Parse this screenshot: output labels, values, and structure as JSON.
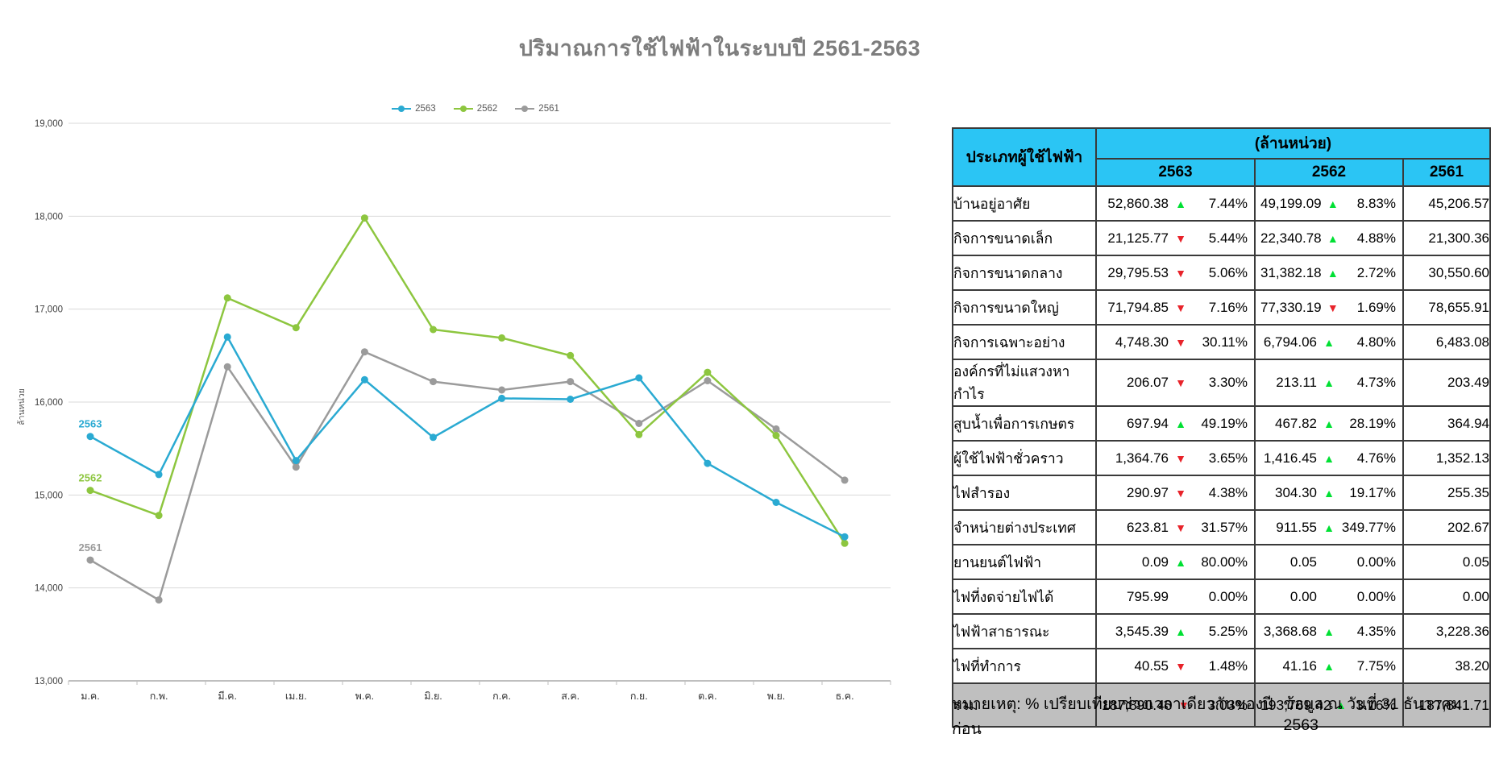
{
  "title": "ปริมาณการใช้ไฟฟ้าในระบบปี 2561-2563",
  "icons": {
    "up": "▲",
    "down": "▼"
  },
  "chart_data": {
    "type": "line",
    "title": "ปริมาณการใช้ไฟฟ้าในระบบปี 2561-2563",
    "ylabel": "ล้านหน่วย",
    "ylim": [
      13000,
      19000
    ],
    "ytick_step": 1000,
    "grid": true,
    "legend_position": "top",
    "categories": [
      "ม.ค.",
      "ก.พ.",
      "มี.ค.",
      "เม.ย.",
      "พ.ค.",
      "มิ.ย.",
      "ก.ค.",
      "ส.ค.",
      "ก.ย.",
      "ต.ค.",
      "พ.ย.",
      "ธ.ค."
    ],
    "series": [
      {
        "name": "2563",
        "color": "#2aaad2",
        "values": [
          15630,
          15220,
          16700,
          15370,
          16240,
          15620,
          16040,
          16030,
          16260,
          15340,
          14920,
          14550
        ]
      },
      {
        "name": "2562",
        "color": "#8dc63f",
        "values": [
          15050,
          14780,
          17120,
          16800,
          17980,
          16780,
          16690,
          16500,
          15650,
          16320,
          15640,
          14480
        ]
      },
      {
        "name": "2561",
        "color": "#9b9b9b",
        "values": [
          14300,
          13870,
          16380,
          15300,
          16540,
          16220,
          16130,
          16220,
          15770,
          16230,
          15710,
          15160
        ]
      }
    ]
  },
  "table": {
    "col_header": "ประเภทผู้ใช้ไฟฟ้า",
    "unit_header": "(ล้านหน่วย)",
    "year_headers": [
      "2563",
      "2562",
      "2561"
    ],
    "rows": [
      {
        "label": "บ้านอยู่อาศัย",
        "v63": "52,860.38",
        "d63": "up",
        "p63": "7.44%",
        "v62": "49,199.09",
        "d62": "up",
        "p62": "8.83%",
        "v61": "45,206.57"
      },
      {
        "label": "กิจการขนาดเล็ก",
        "v63": "21,125.77",
        "d63": "down",
        "p63": "5.44%",
        "v62": "22,340.78",
        "d62": "up",
        "p62": "4.88%",
        "v61": "21,300.36"
      },
      {
        "label": "กิจการขนาดกลาง",
        "v63": "29,795.53",
        "d63": "down",
        "p63": "5.06%",
        "v62": "31,382.18",
        "d62": "up",
        "p62": "2.72%",
        "v61": "30,550.60"
      },
      {
        "label": "กิจการขนาดใหญ่",
        "v63": "71,794.85",
        "d63": "down",
        "p63": "7.16%",
        "v62": "77,330.19",
        "d62": "down",
        "p62": "1.69%",
        "v61": "78,655.91"
      },
      {
        "label": "กิจการเฉพาะอย่าง",
        "v63": "4,748.30",
        "d63": "down",
        "p63": "30.11%",
        "v62": "6,794.06",
        "d62": "up",
        "p62": "4.80%",
        "v61": "6,483.08"
      },
      {
        "label": "องค์กรที่ไม่แสวงหากำไร",
        "v63": "206.07",
        "d63": "down",
        "p63": "3.30%",
        "v62": "213.11",
        "d62": "up",
        "p62": "4.73%",
        "v61": "203.49"
      },
      {
        "label": "สูบน้ำเพื่อการเกษตร",
        "v63": "697.94",
        "d63": "up",
        "p63": "49.19%",
        "v62": "467.82",
        "d62": "up",
        "p62": "28.19%",
        "v61": "364.94"
      },
      {
        "label": "ผู้ใช้ไฟฟ้าชั่วคราว",
        "v63": "1,364.76",
        "d63": "down",
        "p63": "3.65%",
        "v62": "1,416.45",
        "d62": "up",
        "p62": "4.76%",
        "v61": "1,352.13"
      },
      {
        "label": "ไฟสำรอง",
        "v63": "290.97",
        "d63": "down",
        "p63": "4.38%",
        "v62": "304.30",
        "d62": "up",
        "p62": "19.17%",
        "v61": "255.35"
      },
      {
        "label": "จำหน่ายต่างประเทศ",
        "v63": "623.81",
        "d63": "down",
        "p63": "31.57%",
        "v62": "911.55",
        "d62": "up",
        "p62": "349.77%",
        "v61": "202.67"
      },
      {
        "label": "ยานยนต์ไฟฟ้า",
        "v63": "0.09",
        "d63": "up",
        "p63": "80.00%",
        "v62": "0.05",
        "d62": "none",
        "p62": "0.00%",
        "v61": "0.05"
      },
      {
        "label": "ไฟที่งดจ่ายไฟได้",
        "v63": "795.99",
        "d63": "none",
        "p63": "0.00%",
        "v62": "0.00",
        "d62": "none",
        "p62": "0.00%",
        "v61": "0.00"
      },
      {
        "label": "ไฟฟ้าสาธารณะ",
        "v63": "3,545.39",
        "d63": "up",
        "p63": "5.25%",
        "v62": "3,368.68",
        "d62": "up",
        "p62": "4.35%",
        "v61": "3,228.36"
      },
      {
        "label": "ไฟที่ทำการ",
        "v63": "40.55",
        "d63": "down",
        "p63": "1.48%",
        "v62": "41.16",
        "d62": "up",
        "p62": "7.75%",
        "v61": "38.20"
      }
    ],
    "total": {
      "label": "รวม",
      "v63": "187,890.40",
      "d63": "down",
      "p63": "3.03%",
      "v62": "193,769.42",
      "d62": "up",
      "p62": "3.16%",
      "v61": "187,841.71"
    }
  },
  "footer": {
    "note": "หมายเหตุ: % เปรียบเทียบช่วงเวลาเดียวกันของปีก่อน",
    "asof": "ข้อมูล ณ วันที่ 31 ธันวาคม 2563"
  },
  "colors": {
    "header_bg": "#2bc5f4",
    "total_bg": "#bfbfbf",
    "up": "#00e033",
    "down": "#e8232a",
    "grid": "#d9d9d9",
    "axis": "#bfbfbf",
    "title": "#7d7d7d"
  }
}
